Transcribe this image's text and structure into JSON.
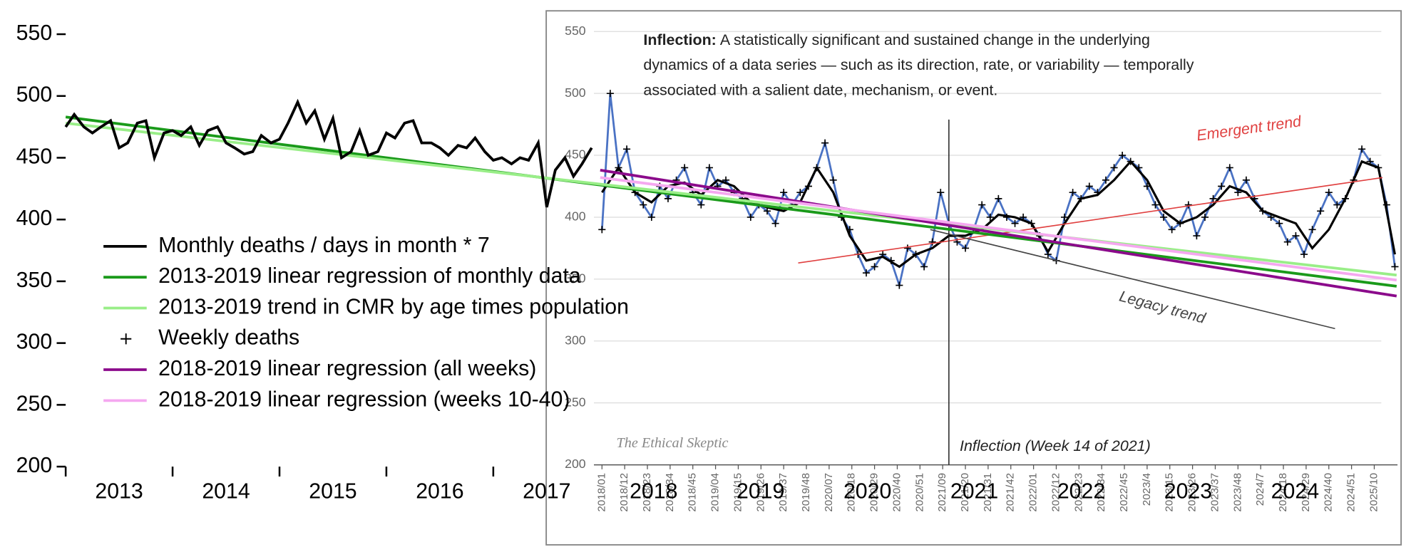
{
  "chart_data": [
    {
      "type": "line",
      "ylim": [
        200,
        550
      ],
      "yticks": [
        200,
        250,
        300,
        350,
        400,
        450,
        500,
        550
      ],
      "xlim": [
        2013,
        2025.45
      ],
      "xticks": [
        {
          "value": 2013.5,
          "label": "2013"
        },
        {
          "value": 2014.5,
          "label": "2014"
        },
        {
          "value": 2015.5,
          "label": "2015"
        },
        {
          "value": 2016.5,
          "label": "2016"
        },
        {
          "value": 2017.5,
          "label": "2017"
        },
        {
          "value": 2018.5,
          "label": "2018"
        },
        {
          "value": 2019.5,
          "label": "2019"
        },
        {
          "value": 2020.5,
          "label": "2020"
        },
        {
          "value": 2021.5,
          "label": "2021"
        },
        {
          "value": 2022.5,
          "label": "2022"
        },
        {
          "value": 2023.5,
          "label": "2023"
        },
        {
          "value": 2024.5,
          "label": "2024"
        }
      ],
      "series": [
        {
          "name": "Monthly deaths / days in month * 7",
          "color": "#000000",
          "x": [
            2013,
            2013.08,
            2013.17,
            2013.25,
            2013.33,
            2013.42,
            2013.5,
            2013.58,
            2013.67,
            2013.75,
            2013.83,
            2013.92,
            2014,
            2014.08,
            2014.17,
            2014.25,
            2014.33,
            2014.42,
            2014.5,
            2014.58,
            2014.67,
            2014.75,
            2014.83,
            2014.92,
            2015,
            2015.08,
            2015.17,
            2015.25,
            2015.33,
            2015.42,
            2015.5,
            2015.58,
            2015.67,
            2015.75,
            2015.83,
            2015.92,
            2016,
            2016.08,
            2016.17,
            2016.25,
            2016.33,
            2016.42,
            2016.5,
            2016.58,
            2016.67,
            2016.75,
            2016.83,
            2016.92,
            2017,
            2017.08,
            2017.17,
            2017.25,
            2017.33,
            2017.42,
            2017.5,
            2017.58,
            2017.67,
            2017.75,
            2017.83,
            2017.92
          ],
          "values": [
            475,
            485,
            475,
            470,
            475,
            480,
            458,
            462,
            478,
            480,
            450,
            470,
            472,
            468,
            475,
            460,
            472,
            475,
            462,
            458,
            453,
            455,
            468,
            462,
            465,
            478,
            495,
            478,
            488,
            465,
            482,
            450,
            455,
            472,
            452,
            455,
            470,
            466,
            478,
            480,
            462,
            462,
            458,
            452,
            460,
            458,
            466,
            455,
            448,
            450,
            445,
            450,
            448,
            462,
            410,
            440,
            450,
            435,
            445,
            458
          ]
        },
        {
          "name": "2013-2019 linear regression of monthly data",
          "color": "#1a9a1a",
          "x": [
            2013,
            2025.45
          ],
          "values": [
            483,
            346
          ]
        },
        {
          "name": "2013-2019 trend in CMR by age times population",
          "color": "#99ee88",
          "x": [
            2013,
            2025.45
          ],
          "values": [
            478,
            355
          ]
        },
        {
          "name": "2018-2019 linear regression (all weeks)",
          "color": "#8b0a8b",
          "x": [
            2018,
            2025.45
          ],
          "values": [
            440,
            338
          ]
        },
        {
          "name": "2018-2019 linear regression (weeks 10-40)",
          "color": "#f5a8f0",
          "x": [
            2018,
            2025.45
          ],
          "values": [
            434,
            351
          ]
        }
      ]
    },
    {
      "type": "line",
      "annotation": {
        "term": "Inflection:",
        "lines": [
          "A statistically significant and sustained change in the underlying",
          "dynamics of a data series — such as its direction, rate, or variability — temporally",
          "associated with a salient date, mechanism, or event."
        ]
      },
      "watermark": "The Ethical Skeptic",
      "ylim": [
        200,
        550
      ],
      "yticks": [
        200,
        250,
        300,
        350,
        400,
        450,
        500,
        550
      ],
      "xlim": [
        -27,
        387
      ],
      "xticks": [
        {
          "value": 0,
          "label": "2018/01"
        },
        {
          "value": 11,
          "label": "2018/12"
        },
        {
          "value": 22,
          "label": "2018/23"
        },
        {
          "value": 33,
          "label": "2018/34"
        },
        {
          "value": 44,
          "label": "2018/45"
        },
        {
          "value": 55,
          "label": "2019/04"
        },
        {
          "value": 66,
          "label": "2019/15"
        },
        {
          "value": 77,
          "label": "2019/26"
        },
        {
          "value": 88,
          "label": "2019/37"
        },
        {
          "value": 99,
          "label": "2019/48"
        },
        {
          "value": 110,
          "label": "2020/07"
        },
        {
          "value": 121,
          "label": "2020/18"
        },
        {
          "value": 132,
          "label": "2020/29"
        },
        {
          "value": 143,
          "label": "2020/40"
        },
        {
          "value": 154,
          "label": "2020/51"
        },
        {
          "value": 165,
          "label": "2021/09"
        },
        {
          "value": 176,
          "label": "2021/20"
        },
        {
          "value": 187,
          "label": "2021/31"
        },
        {
          "value": 198,
          "label": "2021/42"
        },
        {
          "value": 209,
          "label": "2022/01"
        },
        {
          "value": 220,
          "label": "2022/12"
        },
        {
          "value": 231,
          "label": "2022/23"
        },
        {
          "value": 242,
          "label": "2022/34"
        },
        {
          "value": 253,
          "label": "2022/45"
        },
        {
          "value": 264,
          "label": "2023/4"
        },
        {
          "value": 275,
          "label": "2023/15"
        },
        {
          "value": 286,
          "label": "2023/26"
        },
        {
          "value": 297,
          "label": "2023/37"
        },
        {
          "value": 308,
          "label": "2023/48"
        },
        {
          "value": 319,
          "label": "2024/7"
        },
        {
          "value": 330,
          "label": "2024/18"
        },
        {
          "value": 341,
          "label": "2024/29"
        },
        {
          "value": 352,
          "label": "2024/40"
        },
        {
          "value": 363,
          "label": "2024/51"
        },
        {
          "value": 374,
          "label": "2025/10"
        }
      ],
      "vline": {
        "x": 168,
        "label": "Inflection (Week 14  of 2021)"
      },
      "series": [
        {
          "name": "Weekly deaths",
          "color": "#4a72c4",
          "marker": "+",
          "x": [
            0,
            4,
            8,
            12,
            16,
            20,
            24,
            28,
            32,
            36,
            40,
            44,
            48,
            52,
            56,
            60,
            64,
            68,
            72,
            76,
            80,
            84,
            88,
            92,
            96,
            100,
            104,
            108,
            112,
            116,
            120,
            124,
            128,
            132,
            136,
            140,
            144,
            148,
            152,
            156,
            160,
            164,
            168,
            172,
            176,
            180,
            184,
            188,
            192,
            196,
            200,
            204,
            208,
            212,
            216,
            220,
            224,
            228,
            232,
            236,
            240,
            244,
            248,
            252,
            256,
            260,
            264,
            268,
            272,
            276,
            280,
            284,
            288,
            292,
            296,
            300,
            304,
            308,
            312,
            316,
            320,
            324,
            328,
            332,
            336,
            340,
            344,
            348,
            352,
            356,
            360,
            364,
            368,
            372,
            376,
            380,
            384
          ],
          "values": [
            390,
            500,
            440,
            455,
            420,
            410,
            400,
            425,
            415,
            430,
            440,
            420,
            410,
            440,
            425,
            430,
            420,
            415,
            400,
            410,
            405,
            395,
            420,
            410,
            420,
            425,
            440,
            460,
            430,
            400,
            390,
            370,
            355,
            360,
            370,
            365,
            345,
            375,
            370,
            360,
            380,
            420,
            395,
            380,
            375,
            390,
            410,
            400,
            415,
            400,
            395,
            400,
            395,
            385,
            370,
            365,
            400,
            420,
            415,
            425,
            420,
            430,
            440,
            450,
            445,
            440,
            425,
            410,
            400,
            390,
            395,
            410,
            385,
            400,
            415,
            425,
            440,
            420,
            430,
            415,
            405,
            400,
            395,
            380,
            385,
            370,
            390,
            405,
            420,
            410,
            415,
            430,
            455,
            445,
            440,
            410,
            360
          ]
        },
        {
          "color": "#000000",
          "x": [
            0,
            8,
            16,
            24,
            32,
            40,
            48,
            56,
            64,
            72,
            80,
            88,
            96,
            104,
            112,
            120,
            128,
            136,
            144,
            152,
            160,
            168,
            176,
            184,
            192,
            200,
            208,
            216,
            224,
            232,
            240,
            248,
            256,
            264,
            272,
            280,
            288,
            296,
            304,
            312,
            320,
            328,
            336,
            344,
            352,
            360,
            368,
            376,
            384
          ],
          "values": [
            420,
            440,
            420,
            412,
            425,
            428,
            418,
            430,
            425,
            412,
            408,
            405,
            412,
            440,
            420,
            385,
            365,
            368,
            360,
            370,
            375,
            385,
            385,
            390,
            402,
            400,
            395,
            372,
            395,
            415,
            418,
            430,
            445,
            430,
            405,
            395,
            400,
            410,
            425,
            420,
            405,
            400,
            395,
            375,
            390,
            415,
            445,
            440,
            370
          ]
        },
        {
          "name": "Emergent trend",
          "color": "#e04040",
          "x": [
            95,
            378
          ],
          "values": [
            363,
            432
          ]
        },
        {
          "name": "Legacy trend",
          "color": "#444444",
          "x": [
            159,
            355
          ],
          "values": [
            390,
            310
          ]
        }
      ]
    }
  ]
}
